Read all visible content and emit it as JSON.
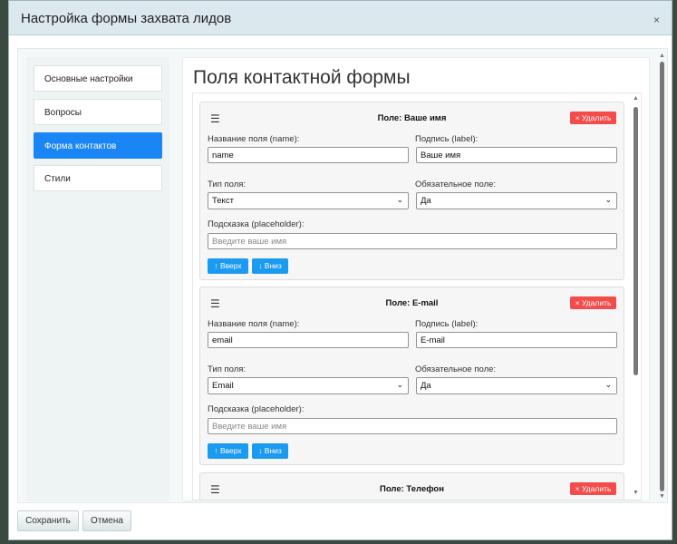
{
  "dialog": {
    "title": "Настройка формы захвата лидов",
    "close": "×"
  },
  "sidebar": {
    "items": [
      {
        "label": "Основные настройки"
      },
      {
        "label": "Вопросы"
      },
      {
        "label": "Форма контактов",
        "active": true
      },
      {
        "label": "Стили"
      }
    ]
  },
  "main": {
    "title": "Поля контактной формы"
  },
  "labels": {
    "name": "Название поля (name):",
    "label": "Подпись (label):",
    "type": "Тип поля:",
    "required": "Обязательное поле:",
    "placeholder": "Подсказка (placeholder):",
    "delete": "× Удалить",
    "up": "↑ Вверх",
    "down": "↓ Вниз",
    "drag": "☰"
  },
  "fields": [
    {
      "title": "Поле: Ваше имя",
      "name": "name",
      "label": "Ваше имя",
      "type": "Текст",
      "required": "Да",
      "placeholder": "Введите ваше имя"
    },
    {
      "title": "Поле: E-mail",
      "name": "email",
      "label": "E-mail",
      "type": "Email",
      "required": "Да",
      "placeholder": "Введите ваше имя"
    },
    {
      "title": "Поле: Телефон"
    }
  ],
  "footer": {
    "save": "Сохранить",
    "cancel": "Отмена"
  },
  "colors": {
    "primary": "#1a85f5",
    "danger": "#f44b4b",
    "header_bg": "#dbe9ee"
  }
}
